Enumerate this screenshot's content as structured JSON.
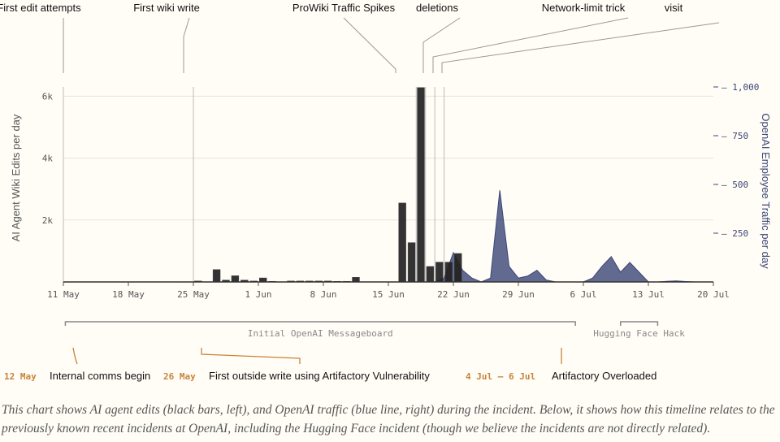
{
  "chart_data": {
    "type": "bar",
    "categories": [
      "11 May",
      "12 May",
      "13 May",
      "14 May",
      "15 May",
      "16 May",
      "17 May",
      "18 May",
      "19 May",
      "20 May",
      "21 May",
      "22 May",
      "23 May",
      "24 May",
      "25 May",
      "26 May",
      "27 May",
      "28 May",
      "29 May",
      "30 May",
      "31 May",
      "1 Jun",
      "2 Jun",
      "3 Jun",
      "4 Jun",
      "5 Jun",
      "6 Jun",
      "7 Jun",
      "8 Jun",
      "9 Jun",
      "10 Jun",
      "11 Jun",
      "12 Jun",
      "13 Jun",
      "14 Jun",
      "15 Jun",
      "16 Jun",
      "17 Jun",
      "18 Jun",
      "19 Jun",
      "20 Jun",
      "21 Jun",
      "22 Jun"
    ],
    "series": [
      {
        "name": "AI agent edits",
        "axis": "left",
        "values": [
          5,
          5,
          5,
          5,
          5,
          5,
          5,
          5,
          5,
          5,
          5,
          5,
          5,
          5,
          30,
          5,
          400,
          60,
          200,
          60,
          30,
          130,
          20,
          5,
          30,
          30,
          30,
          30,
          30,
          20,
          20,
          150,
          5,
          5,
          5,
          5,
          2550,
          1270,
          6280,
          500,
          640,
          640,
          920
        ]
      },
      {
        "name": "OpenAI traffic",
        "axis": "right",
        "points": [
          {
            "x": "20 Jun",
            "y": 0
          },
          {
            "x": "21 Jun",
            "y": 20
          },
          {
            "x": "22 Jun",
            "y": 150
          },
          {
            "x": "23 Jun",
            "y": 60
          },
          {
            "x": "24 Jun",
            "y": 20
          },
          {
            "x": "25 Jun",
            "y": 0
          },
          {
            "x": "26 Jun",
            "y": 20
          },
          {
            "x": "27 Jun",
            "y": 470
          },
          {
            "x": "28 Jun",
            "y": 80
          },
          {
            "x": "29 Jun",
            "y": 20
          },
          {
            "x": "30 Jun",
            "y": 30
          },
          {
            "x": "1 Jul",
            "y": 60
          },
          {
            "x": "2 Jul",
            "y": 10
          },
          {
            "x": "3 Jul",
            "y": 0
          },
          {
            "x": "4 Jul",
            "y": 0
          },
          {
            "x": "5 Jul",
            "y": 0
          },
          {
            "x": "6 Jul",
            "y": 0
          },
          {
            "x": "7 Jul",
            "y": 20
          },
          {
            "x": "8 Jul",
            "y": 80
          },
          {
            "x": "9 Jul",
            "y": 130
          },
          {
            "x": "10 Jul",
            "y": 50
          },
          {
            "x": "11 Jul",
            "y": 100
          },
          {
            "x": "12 Jul",
            "y": 50
          },
          {
            "x": "13 Jul",
            "y": 0
          },
          {
            "x": "14 Jul",
            "y": 0
          },
          {
            "x": "15 Jul",
            "y": 3
          },
          {
            "x": "16 Jul",
            "y": 5
          },
          {
            "x": "17 Jul",
            "y": 2
          },
          {
            "x": "18 Jul",
            "y": 0
          },
          {
            "x": "19 Jul",
            "y": 0
          },
          {
            "x": "20 Jul",
            "y": 0
          }
        ]
      }
    ],
    "colors": {
      "bars": "#222222",
      "traffic": "#3b4577",
      "timeline": "#c8843a"
    },
    "ylabel": "AI Agent Wiki Edits per day",
    "y2label": "OpenAI Employee Traffic per day",
    "ylim": [
      0,
      6300
    ],
    "y2lim": [
      0,
      1000
    ],
    "yticks": [
      "2k",
      "4k",
      "6k"
    ],
    "y2ticks": [
      "250",
      "500",
      "750",
      "1,000"
    ],
    "xticks": [
      "11 May",
      "18 May",
      "25 May",
      "1 Jun",
      "8 Jun",
      "15 Jun",
      "22 Jun",
      "29 Jun",
      "6 Jul",
      "13 Jul",
      "20 Jul"
    ],
    "xlim": [
      "11 May",
      "20 Jul"
    ],
    "annotations": [
      {
        "label": "First edit attempts",
        "x": "11 May"
      },
      {
        "label": "First wiki write",
        "x": "25 May"
      },
      {
        "label": "ProWiki Traffic Spikes",
        "x": "18 Jun"
      },
      {
        "label": "deletions",
        "x": "19 Jun"
      },
      {
        "label": "Network-limit trick",
        "x": "20 Jun"
      },
      {
        "label": "visit",
        "x": "21 Jun"
      }
    ],
    "spans": [
      {
        "label": "Initial OpenAI Messageboard",
        "from": "12 May",
        "to": "4 Jul"
      },
      {
        "label": "Hugging Face Hack",
        "from": "10 Jul",
        "to": "14 Jul"
      }
    ],
    "events": [
      {
        "date": "12 May",
        "text": "Internal comms begin"
      },
      {
        "date": "26 May",
        "text": "First outside write using Artifactory Vulnerability"
      },
      {
        "date": "4 Jul – 6 Jul",
        "text": "Artifactory Overloaded"
      }
    ],
    "grid": true
  },
  "caption": "This chart shows AI agent edits (black bars, left), and OpenAI traffic (blue line, right) during the incident. Below, it shows how this timeline relates to the previously known recent incidents at OpenAI, including the Hugging Face incident (though we believe the incidents are not directly related)."
}
